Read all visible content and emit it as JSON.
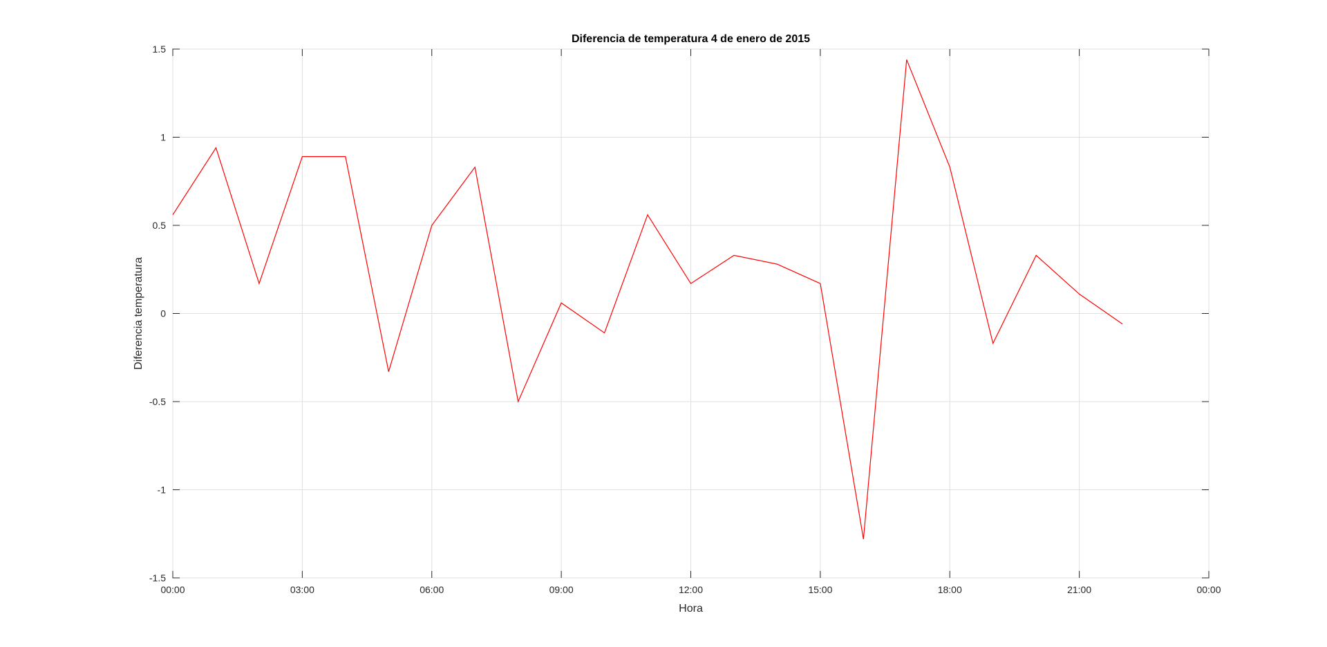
{
  "chart_data": {
    "type": "line",
    "title": "Diferencia de temperatura 4 de enero de 2015",
    "xlabel": "Hora",
    "ylabel": "Diferencia temperatura",
    "xlim": [
      0,
      24
    ],
    "ylim": [
      -1.5,
      1.5
    ],
    "x_ticks": [
      0,
      3,
      6,
      9,
      12,
      15,
      18,
      21,
      24
    ],
    "x_tick_labels": [
      "00:00",
      "03:00",
      "06:00",
      "09:00",
      "12:00",
      "15:00",
      "18:00",
      "21:00",
      "00:00"
    ],
    "y_ticks": [
      1.5,
      1,
      0.5,
      0,
      -0.5,
      -1,
      -1.5
    ],
    "y_tick_labels": [
      "1.5",
      "1",
      "0.5",
      "0",
      "-0.5",
      "-1",
      "-1.5"
    ],
    "grid": true,
    "series": [
      {
        "color": "#ff0000",
        "x": [
          0,
          1,
          2,
          3,
          4,
          5,
          6,
          7,
          8,
          9,
          10,
          11,
          12,
          13,
          14,
          15,
          16,
          17,
          18,
          19,
          20,
          21,
          22
        ],
        "values": [
          0.56,
          0.94,
          0.17,
          0.89,
          0.89,
          -0.33,
          0.5,
          0.83,
          -0.5,
          0.06,
          -0.11,
          0.56,
          0.17,
          0.33,
          0.28,
          0.17,
          -1.28,
          1.44,
          0.83,
          -0.17,
          0.33,
          0.11,
          -0.06
        ]
      }
    ]
  }
}
